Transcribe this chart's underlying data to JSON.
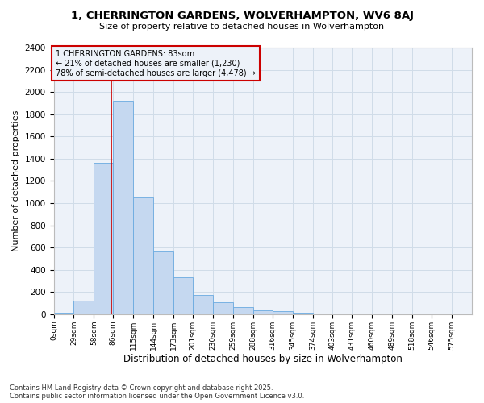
{
  "title1": "1, CHERRINGTON GARDENS, WOLVERHAMPTON, WV6 8AJ",
  "title2": "Size of property relative to detached houses in Wolverhampton",
  "xlabel": "Distribution of detached houses by size in Wolverhampton",
  "ylabel": "Number of detached properties",
  "footer": "Contains HM Land Registry data © Crown copyright and database right 2025.\nContains public sector information licensed under the Open Government Licence v3.0.",
  "bin_labels": [
    "0sqm",
    "29sqm",
    "58sqm",
    "86sqm",
    "115sqm",
    "144sqm",
    "173sqm",
    "201sqm",
    "230sqm",
    "259sqm",
    "288sqm",
    "316sqm",
    "345sqm",
    "374sqm",
    "403sqm",
    "431sqm",
    "460sqm",
    "489sqm",
    "518sqm",
    "546sqm",
    "575sqm"
  ],
  "bar_values": [
    15,
    125,
    1360,
    1920,
    1050,
    565,
    335,
    170,
    110,
    65,
    35,
    25,
    15,
    8,
    5,
    3,
    2,
    1,
    0,
    0,
    10
  ],
  "bin_edges": [
    0,
    29,
    58,
    86,
    115,
    144,
    173,
    201,
    230,
    259,
    288,
    316,
    345,
    374,
    403,
    431,
    460,
    489,
    518,
    546,
    575,
    604
  ],
  "bar_color": "#c5d8f0",
  "bar_edge_color": "#6aaae0",
  "grid_color": "#d0dce8",
  "background_color": "#ffffff",
  "plot_bg_color": "#edf2f9",
  "property_size": 83,
  "annotation_text": "1 CHERRINGTON GARDENS: 83sqm\n← 21% of detached houses are smaller (1,230)\n78% of semi-detached houses are larger (4,478) →",
  "vline_color": "#cc0000",
  "ylim": [
    0,
    2400
  ],
  "yticks": [
    0,
    200,
    400,
    600,
    800,
    1000,
    1200,
    1400,
    1600,
    1800,
    2000,
    2200,
    2400
  ]
}
